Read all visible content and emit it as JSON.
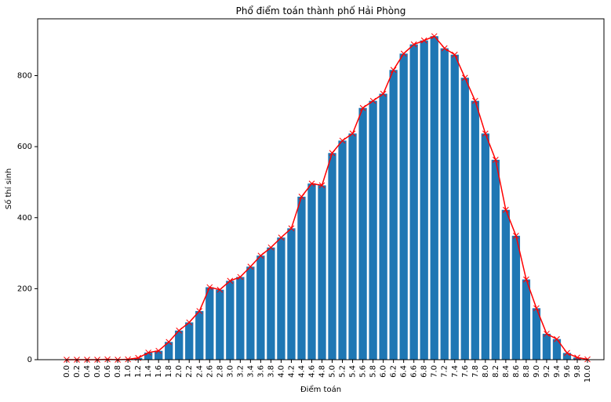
{
  "chart_data": {
    "type": "bar",
    "title": "Phổ điểm toán thành phố Hải Phòng",
    "xlabel": "Điểm toán",
    "ylabel": "Số thí sinh",
    "ylim": [
      0,
      960
    ],
    "yticks": [
      0,
      200,
      400,
      600,
      800
    ],
    "grid": false,
    "legend": "none",
    "bar_color": "#1f77b4",
    "line_color": "#ff0000",
    "marker": "x",
    "categories": [
      "0.0",
      "0.2",
      "0.4",
      "0.6",
      "0.6",
      "0.8",
      "1.0",
      "1.2",
      "1.4",
      "1.6",
      "1.8",
      "2.0",
      "2.2",
      "2.4",
      "2.6",
      "2.8",
      "3.0",
      "3.2",
      "3.4",
      "3.6",
      "3.8",
      "4.0",
      "4.2",
      "4.4",
      "4.6",
      "4.8",
      "5.0",
      "5.2",
      "5.4",
      "5.6",
      "5.8",
      "6.0",
      "6.2",
      "6.4",
      "6.6",
      "6.8",
      "7.0",
      "7.2",
      "7.4",
      "7.6",
      "7.8",
      "8.0",
      "8.2",
      "8.4",
      "8.6",
      "8.8",
      "9.0",
      "9.2",
      "9.4",
      "9.6",
      "9.8",
      "10.0"
    ],
    "values": [
      0,
      0,
      0,
      0,
      1,
      0,
      1,
      5,
      20,
      25,
      50,
      82,
      105,
      137,
      204,
      197,
      222,
      233,
      262,
      293,
      316,
      344,
      370,
      459,
      496,
      491,
      582,
      617,
      637,
      709,
      729,
      749,
      816,
      862,
      888,
      899,
      911,
      877,
      859,
      794,
      729,
      637,
      563,
      422,
      349,
      226,
      145,
      73,
      58,
      19,
      6,
      1
    ]
  }
}
